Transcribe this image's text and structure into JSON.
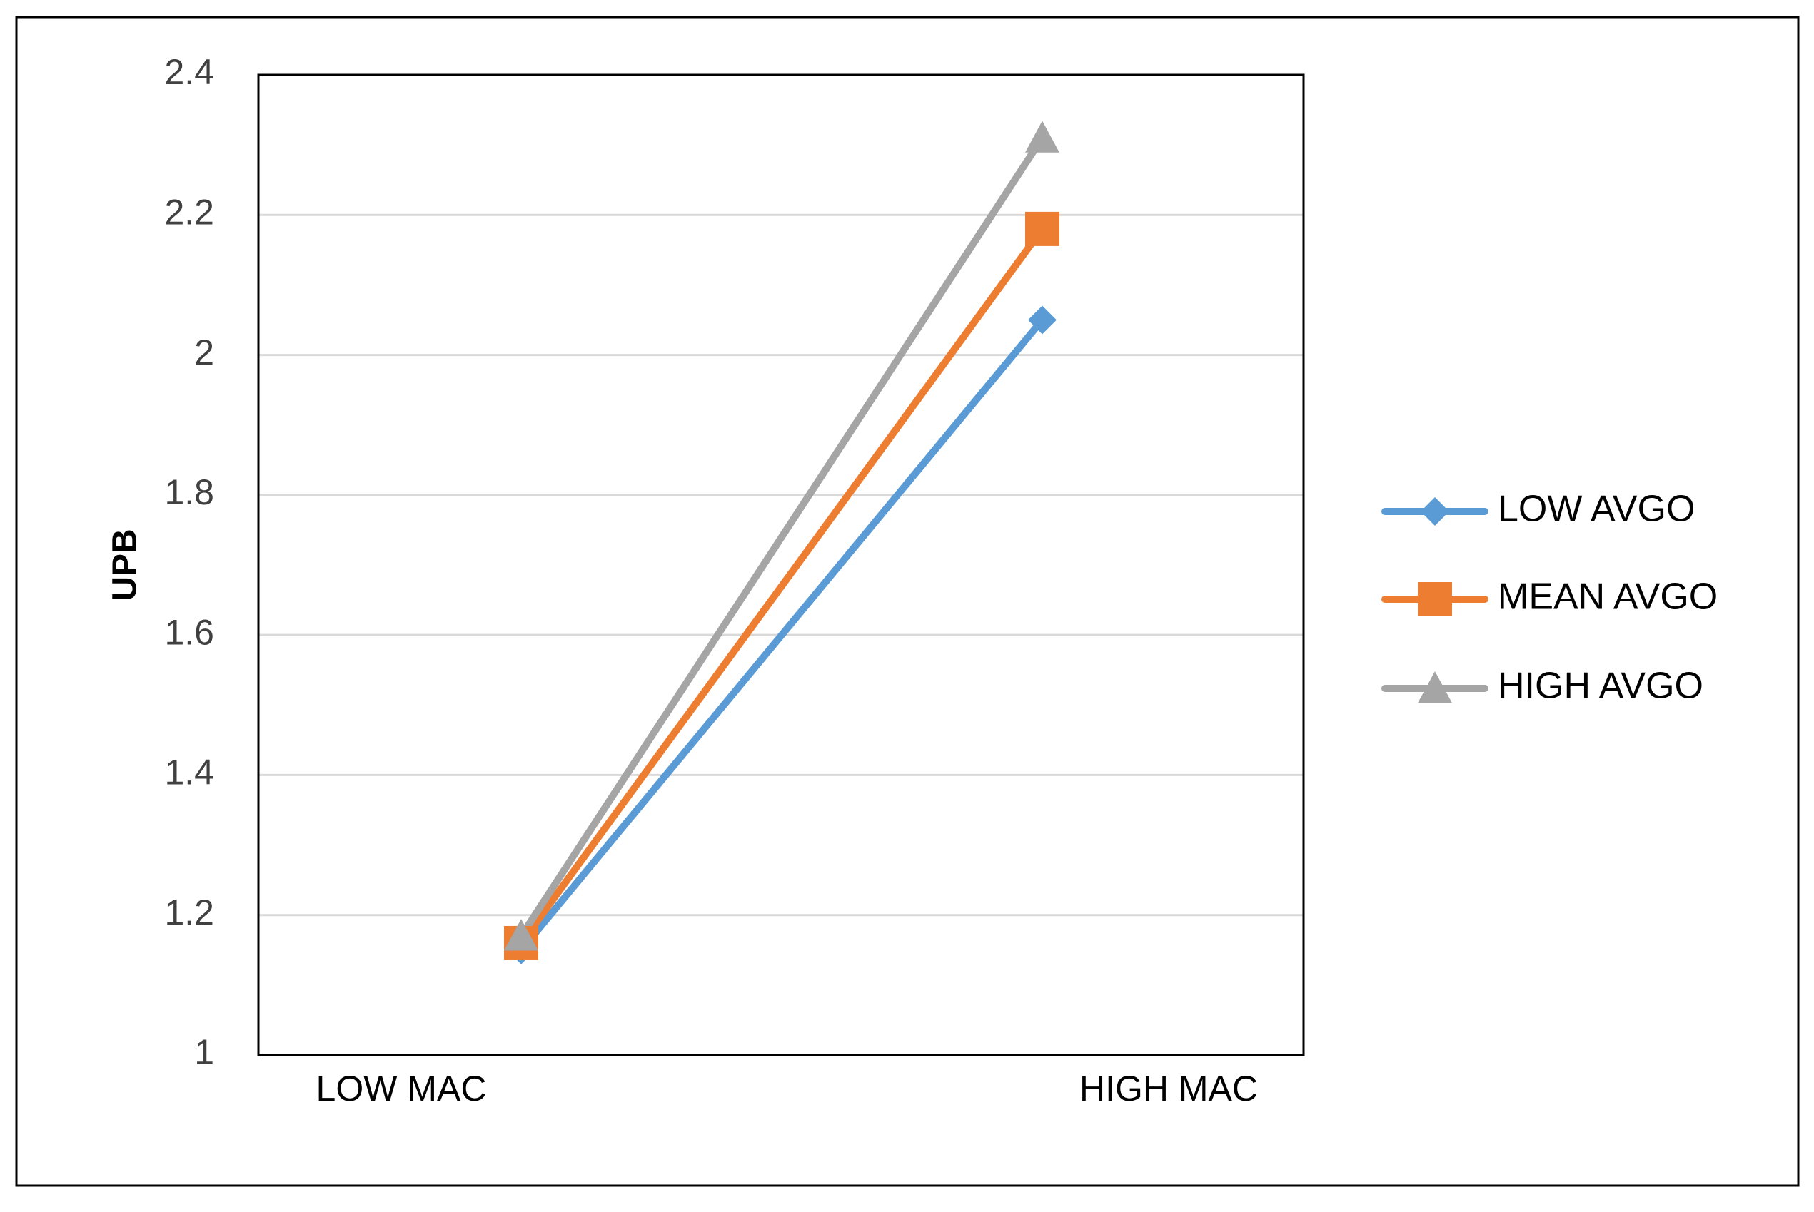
{
  "chart_data": {
    "type": "line",
    "title": "",
    "xlabel": "",
    "ylabel": "UPB",
    "categories": [
      "LOW MAC",
      "HIGH MAC"
    ],
    "ylim": [
      1,
      2.4
    ],
    "yticks": [
      "1",
      "1.2",
      "1.4",
      "1.6",
      "1.8",
      "2",
      "2.2",
      "2.4"
    ],
    "grid": "horizontal",
    "legend_position": "right",
    "series": [
      {
        "name": "LOW AVGO",
        "values": [
          1.15,
          2.05
        ],
        "color": "#5B9BD5",
        "marker": "diamond"
      },
      {
        "name": "MEAN AVGO",
        "values": [
          1.16,
          2.18
        ],
        "color": "#ED7D31",
        "marker": "square"
      },
      {
        "name": "HIGH AVGO",
        "values": [
          1.17,
          2.31
        ],
        "color": "#A5A5A5",
        "marker": "triangle"
      }
    ]
  }
}
